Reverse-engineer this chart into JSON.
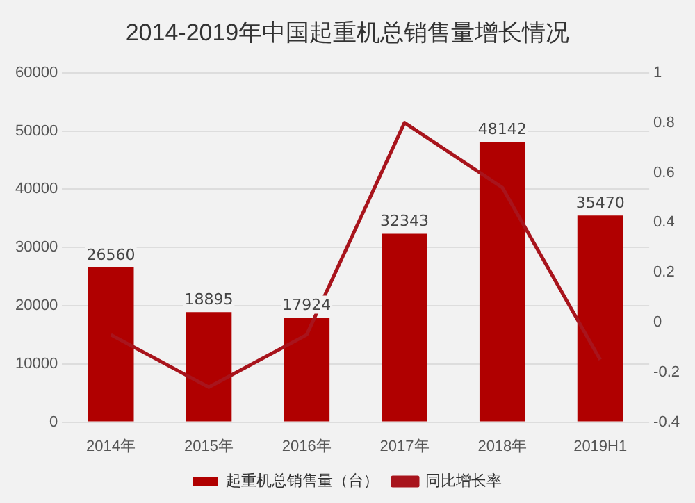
{
  "chart_data": {
    "type": "bar",
    "title": "2014-2019年中国起重机总销售量增长情况",
    "categories": [
      "2014年",
      "2015年",
      "2016年",
      "2017年",
      "2018年",
      "2019H1"
    ],
    "series": [
      {
        "name": "起重机总销售量（台）",
        "color": "#b00000",
        "values": [
          26560,
          18895,
          17924,
          32343,
          48142,
          35470
        ],
        "value_labels": [
          "26560",
          "18895",
          "17924",
          "32343",
          "48142",
          "35470"
        ]
      },
      {
        "name": "同比增长率",
        "type": "line",
        "axis": "y2",
        "color": "#a8141c",
        "values": [
          -0.05,
          -0.26,
          -0.05,
          0.8,
          0.54,
          -0.15
        ]
      }
    ],
    "ylim": [
      0,
      60000
    ],
    "yticks": [
      0,
      10000,
      20000,
      30000,
      40000,
      50000,
      60000
    ],
    "y2lim": [
      -0.4,
      1
    ],
    "y2ticks": [
      -0.4,
      -0.2,
      0,
      0.2,
      0.4,
      0.6,
      0.8,
      1
    ],
    "grid": "y",
    "legend": "bottom",
    "marker": "none"
  }
}
